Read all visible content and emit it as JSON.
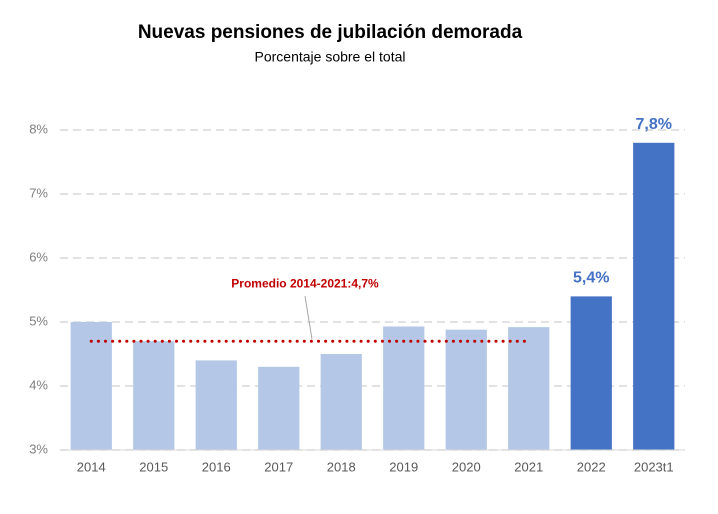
{
  "chart_data": {
    "type": "bar",
    "title": "Nuevas pensiones de jubilación demorada",
    "subtitle": "Porcentaje sobre el total",
    "categories": [
      "2014",
      "2015",
      "2016",
      "2017",
      "2018",
      "2019",
      "2020",
      "2021",
      "2022",
      "2023t1"
    ],
    "values": [
      5.0,
      4.7,
      4.4,
      4.3,
      4.5,
      4.93,
      4.88,
      4.92,
      5.4,
      7.8
    ],
    "value_labels": [
      null,
      null,
      null,
      null,
      null,
      null,
      null,
      null,
      "5,4%",
      "7,8%"
    ],
    "colors": [
      "#b4c7e7",
      "#b4c7e7",
      "#b4c7e7",
      "#b4c7e7",
      "#b4c7e7",
      "#b4c7e7",
      "#b4c7e7",
      "#b4c7e7",
      "#4472c4",
      "#4472c4"
    ],
    "ylim": [
      3,
      8
    ],
    "yticks": [
      {
        "value": 3,
        "label": "3%"
      },
      {
        "value": 4,
        "label": "4%"
      },
      {
        "value": 5,
        "label": "5%"
      },
      {
        "value": 6,
        "label": "6%"
      },
      {
        "value": 7,
        "label": "7%"
      },
      {
        "value": 8,
        "label": "8%"
      }
    ],
    "grid": true,
    "average": {
      "value": 4.7,
      "label": "Promedio 2014-2021:4,7%",
      "color": "#c00000",
      "from": "2014",
      "to": "2021"
    }
  }
}
